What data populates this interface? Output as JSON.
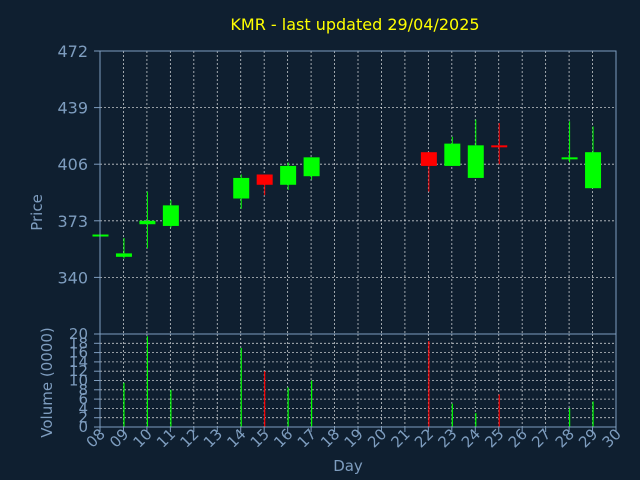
{
  "title": "KMR - last updated 29/04/2025",
  "colors": {
    "background": "#0f1f30",
    "up": "#00ff00",
    "down": "#ff0000",
    "title": "#ffff00",
    "axis": "#7e9dbf",
    "grid": "#ffffff"
  },
  "chart_data": [
    {
      "type": "candlestick",
      "ylabel": "Price",
      "ylim": [
        307,
        472
      ],
      "yticks": [
        340,
        373,
        406,
        439,
        472
      ],
      "grid": true,
      "candles": [
        {
          "x": 8,
          "open": 365,
          "high": 365,
          "low": 365,
          "close": 365
        },
        {
          "x": 9,
          "open": 352,
          "high": 363,
          "low": 351,
          "close": 354
        },
        {
          "x": 10,
          "open": 371,
          "high": 390,
          "low": 357,
          "close": 373
        },
        {
          "x": 11,
          "open": 370,
          "high": 385,
          "low": 369,
          "close": 382
        },
        {
          "x": 14,
          "open": 386,
          "high": 400,
          "low": 380,
          "close": 398
        },
        {
          "x": 15,
          "open": 400,
          "high": 400,
          "low": 388,
          "close": 394
        },
        {
          "x": 16,
          "open": 394,
          "high": 407,
          "low": 391,
          "close": 405
        },
        {
          "x": 17,
          "open": 399,
          "high": 410,
          "low": 397,
          "close": 410
        },
        {
          "x": 22,
          "open": 413,
          "high": 413,
          "low": 390,
          "close": 405
        },
        {
          "x": 23,
          "open": 405,
          "high": 422,
          "low": 405,
          "close": 418
        },
        {
          "x": 24,
          "open": 398,
          "high": 432,
          "low": 398,
          "close": 417
        },
        {
          "x": 25,
          "open": 417,
          "high": 430,
          "low": 406,
          "close": 416
        },
        {
          "x": 28,
          "open": 409,
          "high": 431,
          "low": 407,
          "close": 410
        },
        {
          "x": 29,
          "open": 392,
          "high": 428,
          "low": 392,
          "close": 413
        }
      ]
    },
    {
      "type": "bar",
      "ylabel": "Volume (0000)",
      "xlabel": "Day",
      "ylim": [
        0,
        20
      ],
      "yticks": [
        0,
        2,
        4,
        6,
        8,
        10,
        12,
        14,
        16,
        18,
        20
      ],
      "grid": true,
      "xlim": [
        8,
        30
      ],
      "xtick_labels": [
        "08",
        "09",
        "10",
        "11",
        "12",
        "13",
        "14",
        "15",
        "16",
        "17",
        "18",
        "19",
        "20",
        "21",
        "22",
        "23",
        "24",
        "25",
        "26",
        "27",
        "28",
        "29",
        "30"
      ],
      "bars": [
        {
          "x": 9,
          "value": 9.5,
          "color": "up"
        },
        {
          "x": 10,
          "value": 19.5,
          "color": "up"
        },
        {
          "x": 11,
          "value": 8,
          "color": "up"
        },
        {
          "x": 14,
          "value": 17,
          "color": "up"
        },
        {
          "x": 15,
          "value": 12,
          "color": "down"
        },
        {
          "x": 16,
          "value": 8.5,
          "color": "up"
        },
        {
          "x": 17,
          "value": 10,
          "color": "up"
        },
        {
          "x": 22,
          "value": 18.5,
          "color": "down"
        },
        {
          "x": 23,
          "value": 5,
          "color": "up"
        },
        {
          "x": 24,
          "value": 3,
          "color": "up"
        },
        {
          "x": 25,
          "value": 7,
          "color": "down"
        },
        {
          "x": 28,
          "value": 4,
          "color": "up"
        },
        {
          "x": 29,
          "value": 5.5,
          "color": "up"
        }
      ]
    }
  ]
}
